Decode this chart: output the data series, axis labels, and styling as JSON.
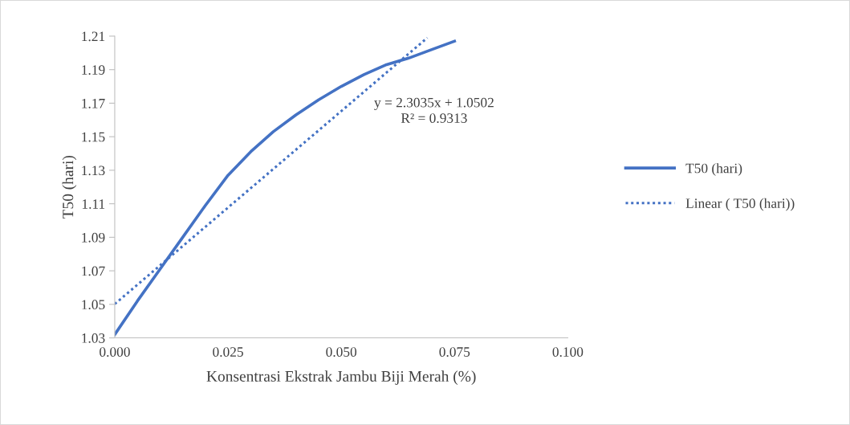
{
  "chart_data": {
    "type": "line",
    "xlabel": "Konsentrasi Ekstrak Jambu Biji Merah (%)",
    "ylabel": "T50 (hari)",
    "x": [
      0,
      0.005,
      0.01,
      0.015,
      0.02,
      0.025,
      0.03,
      0.035,
      0.04,
      0.045,
      0.05,
      0.055,
      0.06,
      0.065,
      0.07,
      0.075
    ],
    "series": [
      {
        "name": "T50 (hari)",
        "color": "#4472c4",
        "values": [
          1.032,
          1.052,
          1.071,
          1.09,
          1.109,
          1.127,
          1.141,
          1.153,
          1.163,
          1.172,
          1.18,
          1.187,
          1.193,
          1.197,
          1.202,
          1.207
        ],
        "line_style": "solid"
      },
      {
        "name": "Linear ( T50 (hari))",
        "color": "#4472c4",
        "x": [
          0,
          0.069
        ],
        "values": [
          1.0502,
          1.209
        ],
        "line_style": "dotted"
      }
    ],
    "xlim": [
      0,
      0.1
    ],
    "xticks": [
      {
        "value": 0,
        "label": "0.000"
      },
      {
        "value": 0.025,
        "label": "0.025"
      },
      {
        "value": 0.05,
        "label": "0.050"
      },
      {
        "value": 0.075,
        "label": "0.075"
      },
      {
        "value": 0.1,
        "label": "0.100"
      }
    ],
    "ylim": [
      1.03,
      1.21
    ],
    "yticks": [
      1.03,
      1.05,
      1.07,
      1.09,
      1.11,
      1.13,
      1.15,
      1.17,
      1.19,
      1.21
    ],
    "annotations": [
      "y = 2.3035x + 1.0502\nR² = 0.9313"
    ],
    "legend": "right",
    "grid": false,
    "marker": "none"
  }
}
